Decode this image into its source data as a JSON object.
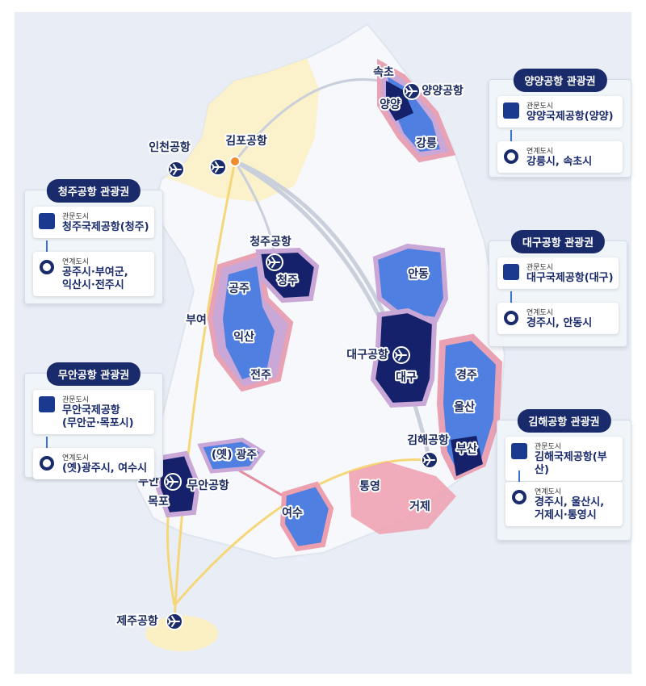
{
  "map_labels": [
    "속초",
    "양양공항",
    "양양",
    "강릉",
    "인천공항",
    "김포공항",
    "청주공항",
    "청주",
    "공주",
    "부여",
    "익산",
    "전주",
    "안동",
    "대구공항",
    "대구",
    "경주",
    "울산",
    "김해공항",
    "부산",
    "통영",
    "거제",
    "(옛) 광주",
    "무안",
    "무안공항",
    "목포",
    "여수",
    "제주공항"
  ],
  "panels": [
    {
      "title": "양양공항 관광권",
      "gateway_label": "관문도시",
      "gateway": [
        "양양국제공항(양양)"
      ],
      "linked_label": "연계도시",
      "linked": [
        "강릉시, 속초시"
      ]
    },
    {
      "title": "청주공항 관광권",
      "gateway_label": "관문도시",
      "gateway": [
        "청주국제공항(청주)"
      ],
      "linked_label": "연계도시",
      "linked": [
        "공주시·부여군,",
        "익산시·전주시"
      ]
    },
    {
      "title": "대구공항 관광권",
      "gateway_label": "관문도시",
      "gateway": [
        "대구국제공항(대구)"
      ],
      "linked_label": "연계도시",
      "linked": [
        "경주시, 안동시"
      ]
    },
    {
      "title": "무안공항 관광권",
      "gateway_label": "관문도시",
      "gateway": [
        "무안국제공항",
        "(무안군·목포시)"
      ],
      "linked_label": "연계도시",
      "linked": [
        "(옛)광주시, 여수시"
      ]
    },
    {
      "title": "김해공항 관광권",
      "gateway_label": "관문도시",
      "gateway": [
        "김해국제공항(부산)"
      ],
      "linked_label": "연계도시",
      "linked": [
        "경주시, 울산시,",
        "거제시·통영시"
      ]
    }
  ]
}
